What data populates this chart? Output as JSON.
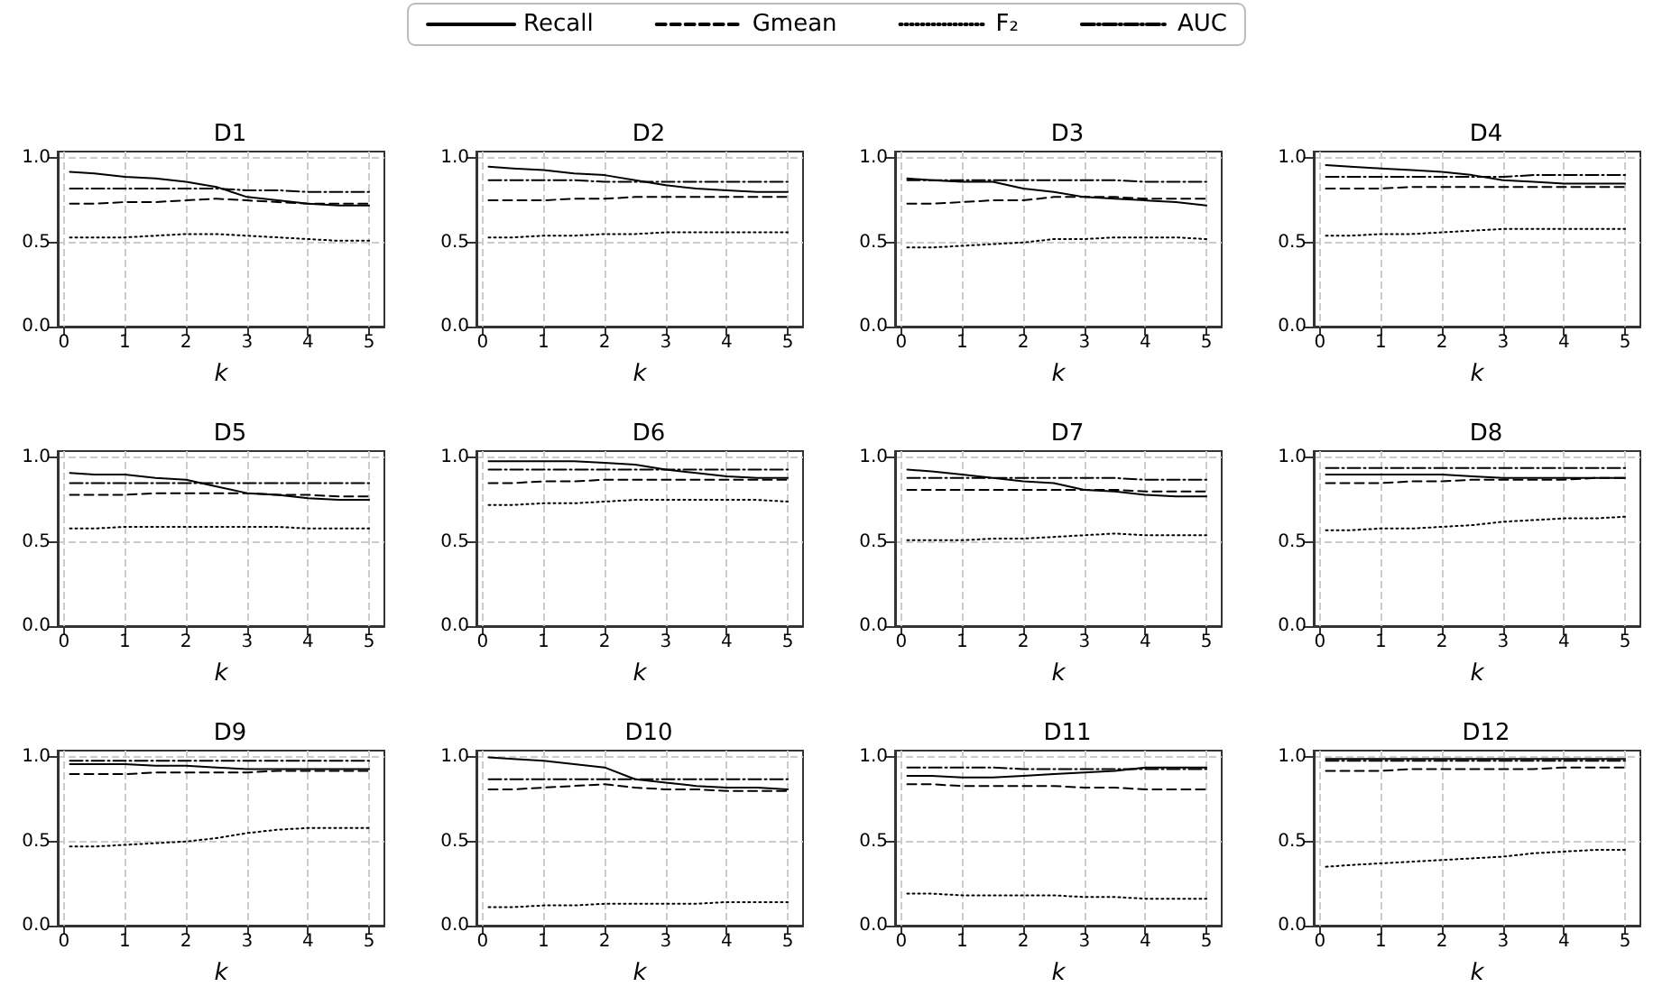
{
  "chart_data": [
    {
      "type": "line",
      "title": "D1",
      "xlabel": "k",
      "legend": "top",
      "grid": true,
      "marker": "none",
      "x": [
        0.1,
        0.5,
        1,
        1.5,
        2,
        2.5,
        3,
        3.5,
        4,
        4.5,
        5
      ],
      "xlim": [
        -0.1,
        5.25
      ],
      "xticks": [
        0,
        1,
        2,
        3,
        4,
        5
      ],
      "ylim": [
        0,
        1.04
      ],
      "yticks": [
        {
          "value": 0,
          "label": "0.0"
        },
        {
          "value": 0.5,
          "label": "0.5"
        },
        {
          "value": 1,
          "label": "1.0"
        }
      ],
      "series": [
        {
          "name": "Recall",
          "color": "#000000",
          "line_style": "solid",
          "values": [
            0.92,
            0.91,
            0.89,
            0.88,
            0.86,
            0.83,
            0.77,
            0.75,
            0.73,
            0.72,
            0.72
          ]
        },
        {
          "name": "Gmean",
          "color": "#000000",
          "line_style": "dashed",
          "values": [
            0.73,
            0.73,
            0.74,
            0.74,
            0.75,
            0.76,
            0.75,
            0.74,
            0.73,
            0.73,
            0.73
          ]
        },
        {
          "name": "F₂",
          "color": "#000000",
          "line_style": "dotted",
          "values": [
            0.53,
            0.53,
            0.53,
            0.54,
            0.55,
            0.55,
            0.54,
            0.53,
            0.52,
            0.51,
            0.51
          ]
        },
        {
          "name": "AUC",
          "color": "#000000",
          "line_style": "dashdot",
          "values": [
            0.82,
            0.82,
            0.82,
            0.82,
            0.82,
            0.82,
            0.81,
            0.81,
            0.8,
            0.8,
            0.8
          ]
        }
      ]
    },
    {
      "type": "line",
      "title": "D2",
      "xlabel": "k",
      "grid": true,
      "marker": "none",
      "x": [
        0.1,
        0.5,
        1,
        1.5,
        2,
        2.5,
        3,
        3.5,
        4,
        4.5,
        5
      ],
      "xlim": [
        -0.1,
        5.25
      ],
      "xticks": [
        0,
        1,
        2,
        3,
        4,
        5
      ],
      "ylim": [
        0,
        1.04
      ],
      "yticks": [
        {
          "value": 0,
          "label": "0.0"
        },
        {
          "value": 0.5,
          "label": "0.5"
        },
        {
          "value": 1,
          "label": "1.0"
        }
      ],
      "series": [
        {
          "color": "#000000",
          "line_style": "solid",
          "values": [
            0.95,
            0.94,
            0.93,
            0.91,
            0.9,
            0.87,
            0.84,
            0.82,
            0.81,
            0.8,
            0.8
          ]
        },
        {
          "color": "#000000",
          "line_style": "dashed",
          "values": [
            0.75,
            0.75,
            0.75,
            0.76,
            0.76,
            0.77,
            0.77,
            0.77,
            0.77,
            0.77,
            0.77
          ]
        },
        {
          "color": "#000000",
          "line_style": "dotted",
          "values": [
            0.53,
            0.53,
            0.54,
            0.54,
            0.55,
            0.55,
            0.56,
            0.56,
            0.56,
            0.56,
            0.56
          ]
        },
        {
          "color": "#000000",
          "line_style": "dashdot",
          "values": [
            0.87,
            0.87,
            0.87,
            0.87,
            0.86,
            0.86,
            0.86,
            0.86,
            0.86,
            0.86,
            0.86
          ]
        }
      ]
    },
    {
      "type": "line",
      "title": "D3",
      "xlabel": "k",
      "grid": true,
      "marker": "none",
      "x": [
        0.1,
        0.5,
        1,
        1.5,
        2,
        2.5,
        3,
        3.5,
        4,
        4.5,
        5
      ],
      "xlim": [
        -0.1,
        5.25
      ],
      "xticks": [
        0,
        1,
        2,
        3,
        4,
        5
      ],
      "ylim": [
        0,
        1.04
      ],
      "yticks": [
        {
          "value": 0,
          "label": "0.0"
        },
        {
          "value": 0.5,
          "label": "0.5"
        },
        {
          "value": 1,
          "label": "1.0"
        }
      ],
      "series": [
        {
          "color": "#000000",
          "line_style": "solid",
          "values": [
            0.88,
            0.87,
            0.86,
            0.86,
            0.82,
            0.8,
            0.77,
            0.76,
            0.75,
            0.74,
            0.72
          ]
        },
        {
          "color": "#000000",
          "line_style": "dashed",
          "values": [
            0.73,
            0.73,
            0.74,
            0.75,
            0.75,
            0.77,
            0.77,
            0.77,
            0.76,
            0.76,
            0.76
          ]
        },
        {
          "color": "#000000",
          "line_style": "dotted",
          "values": [
            0.47,
            0.47,
            0.48,
            0.49,
            0.5,
            0.52,
            0.52,
            0.53,
            0.53,
            0.53,
            0.52
          ]
        },
        {
          "color": "#000000",
          "line_style": "dashdot",
          "values": [
            0.87,
            0.87,
            0.87,
            0.87,
            0.87,
            0.87,
            0.87,
            0.87,
            0.86,
            0.86,
            0.86
          ]
        }
      ]
    },
    {
      "type": "line",
      "title": "D4",
      "xlabel": "k",
      "grid": true,
      "marker": "none",
      "x": [
        0.1,
        0.5,
        1,
        1.5,
        2,
        2.5,
        3,
        3.5,
        4,
        4.5,
        5
      ],
      "xlim": [
        -0.1,
        5.25
      ],
      "xticks": [
        0,
        1,
        2,
        3,
        4,
        5
      ],
      "ylim": [
        0,
        1.04
      ],
      "yticks": [
        {
          "value": 0,
          "label": "0.0"
        },
        {
          "value": 0.5,
          "label": "0.5"
        },
        {
          "value": 1,
          "label": "1.0"
        }
      ],
      "series": [
        {
          "color": "#000000",
          "line_style": "solid",
          "values": [
            0.96,
            0.95,
            0.94,
            0.93,
            0.92,
            0.9,
            0.87,
            0.86,
            0.85,
            0.85,
            0.85
          ]
        },
        {
          "color": "#000000",
          "line_style": "dashed",
          "values": [
            0.82,
            0.82,
            0.82,
            0.83,
            0.83,
            0.83,
            0.83,
            0.83,
            0.83,
            0.83,
            0.83
          ]
        },
        {
          "color": "#000000",
          "line_style": "dotted",
          "values": [
            0.54,
            0.54,
            0.55,
            0.55,
            0.56,
            0.57,
            0.58,
            0.58,
            0.58,
            0.58,
            0.58
          ]
        },
        {
          "color": "#000000",
          "line_style": "dashdot",
          "values": [
            0.89,
            0.89,
            0.89,
            0.89,
            0.89,
            0.89,
            0.89,
            0.9,
            0.9,
            0.9,
            0.9
          ]
        }
      ]
    },
    {
      "type": "line",
      "title": "D5",
      "xlabel": "k",
      "grid": true,
      "marker": "none",
      "x": [
        0.1,
        0.5,
        1,
        1.5,
        2,
        2.5,
        3,
        3.5,
        4,
        4.5,
        5
      ],
      "xlim": [
        -0.1,
        5.25
      ],
      "xticks": [
        0,
        1,
        2,
        3,
        4,
        5
      ],
      "ylim": [
        0,
        1.04
      ],
      "yticks": [
        {
          "value": 0,
          "label": "0.0"
        },
        {
          "value": 0.5,
          "label": "0.5"
        },
        {
          "value": 1,
          "label": "1.0"
        }
      ],
      "series": [
        {
          "color": "#000000",
          "line_style": "solid",
          "values": [
            0.91,
            0.9,
            0.9,
            0.88,
            0.87,
            0.83,
            0.79,
            0.78,
            0.76,
            0.75,
            0.75
          ]
        },
        {
          "color": "#000000",
          "line_style": "dashed",
          "values": [
            0.78,
            0.78,
            0.78,
            0.79,
            0.79,
            0.79,
            0.79,
            0.78,
            0.78,
            0.77,
            0.77
          ]
        },
        {
          "color": "#000000",
          "line_style": "dotted",
          "values": [
            0.58,
            0.58,
            0.59,
            0.59,
            0.59,
            0.59,
            0.59,
            0.59,
            0.58,
            0.58,
            0.58
          ]
        },
        {
          "color": "#000000",
          "line_style": "dashdot",
          "values": [
            0.85,
            0.85,
            0.85,
            0.85,
            0.85,
            0.85,
            0.85,
            0.85,
            0.85,
            0.85,
            0.85
          ]
        }
      ]
    },
    {
      "type": "line",
      "title": "D6",
      "xlabel": "k",
      "grid": true,
      "marker": "none",
      "x": [
        0.1,
        0.5,
        1,
        1.5,
        2,
        2.5,
        3,
        3.5,
        4,
        4.5,
        5
      ],
      "xlim": [
        -0.1,
        5.25
      ],
      "xticks": [
        0,
        1,
        2,
        3,
        4,
        5
      ],
      "ylim": [
        0,
        1.04
      ],
      "yticks": [
        {
          "value": 0,
          "label": "0.0"
        },
        {
          "value": 0.5,
          "label": "0.5"
        },
        {
          "value": 1,
          "label": "1.0"
        }
      ],
      "series": [
        {
          "color": "#000000",
          "line_style": "solid",
          "values": [
            0.98,
            0.98,
            0.98,
            0.98,
            0.97,
            0.96,
            0.93,
            0.91,
            0.89,
            0.88,
            0.88
          ]
        },
        {
          "color": "#000000",
          "line_style": "dashed",
          "values": [
            0.85,
            0.85,
            0.86,
            0.86,
            0.87,
            0.87,
            0.87,
            0.87,
            0.87,
            0.87,
            0.87
          ]
        },
        {
          "color": "#000000",
          "line_style": "dotted",
          "values": [
            0.72,
            0.72,
            0.73,
            0.73,
            0.74,
            0.75,
            0.75,
            0.75,
            0.75,
            0.75,
            0.74
          ]
        },
        {
          "color": "#000000",
          "line_style": "dashdot",
          "values": [
            0.93,
            0.93,
            0.93,
            0.93,
            0.93,
            0.93,
            0.93,
            0.93,
            0.93,
            0.93,
            0.93
          ]
        }
      ]
    },
    {
      "type": "line",
      "title": "D7",
      "xlabel": "k",
      "grid": true,
      "marker": "none",
      "x": [
        0.1,
        0.5,
        1,
        1.5,
        2,
        2.5,
        3,
        3.5,
        4,
        4.5,
        5
      ],
      "xlim": [
        -0.1,
        5.25
      ],
      "xticks": [
        0,
        1,
        2,
        3,
        4,
        5
      ],
      "ylim": [
        0,
        1.04
      ],
      "yticks": [
        {
          "value": 0,
          "label": "0.0"
        },
        {
          "value": 0.5,
          "label": "0.5"
        },
        {
          "value": 1,
          "label": "1.0"
        }
      ],
      "series": [
        {
          "color": "#000000",
          "line_style": "solid",
          "values": [
            0.93,
            0.92,
            0.9,
            0.88,
            0.86,
            0.85,
            0.81,
            0.8,
            0.78,
            0.77,
            0.77
          ]
        },
        {
          "color": "#000000",
          "line_style": "dashed",
          "values": [
            0.81,
            0.81,
            0.81,
            0.81,
            0.81,
            0.81,
            0.81,
            0.81,
            0.8,
            0.8,
            0.8
          ]
        },
        {
          "color": "#000000",
          "line_style": "dotted",
          "values": [
            0.51,
            0.51,
            0.51,
            0.52,
            0.52,
            0.53,
            0.54,
            0.55,
            0.54,
            0.54,
            0.54
          ]
        },
        {
          "color": "#000000",
          "line_style": "dashdot",
          "values": [
            0.88,
            0.88,
            0.88,
            0.88,
            0.88,
            0.88,
            0.88,
            0.88,
            0.87,
            0.87,
            0.87
          ]
        }
      ]
    },
    {
      "type": "line",
      "title": "D8",
      "xlabel": "k",
      "grid": true,
      "marker": "none",
      "x": [
        0.1,
        0.5,
        1,
        1.5,
        2,
        2.5,
        3,
        3.5,
        4,
        4.5,
        5
      ],
      "xlim": [
        -0.1,
        5.25
      ],
      "xticks": [
        0,
        1,
        2,
        3,
        4,
        5
      ],
      "ylim": [
        0,
        1.04
      ],
      "yticks": [
        {
          "value": 0,
          "label": "0.0"
        },
        {
          "value": 0.5,
          "label": "0.5"
        },
        {
          "value": 1,
          "label": "1.0"
        }
      ],
      "series": [
        {
          "color": "#000000",
          "line_style": "solid",
          "values": [
            0.9,
            0.9,
            0.9,
            0.9,
            0.9,
            0.89,
            0.88,
            0.88,
            0.88,
            0.88,
            0.88
          ]
        },
        {
          "color": "#000000",
          "line_style": "dashed",
          "values": [
            0.85,
            0.85,
            0.85,
            0.86,
            0.86,
            0.87,
            0.87,
            0.87,
            0.87,
            0.88,
            0.88
          ]
        },
        {
          "color": "#000000",
          "line_style": "dotted",
          "values": [
            0.57,
            0.57,
            0.58,
            0.58,
            0.59,
            0.6,
            0.62,
            0.63,
            0.64,
            0.64,
            0.65
          ]
        },
        {
          "color": "#000000",
          "line_style": "dashdot",
          "values": [
            0.94,
            0.94,
            0.94,
            0.94,
            0.94,
            0.94,
            0.94,
            0.94,
            0.94,
            0.94,
            0.94
          ]
        }
      ]
    },
    {
      "type": "line",
      "title": "D9",
      "xlabel": "k",
      "grid": true,
      "marker": "none",
      "x": [
        0.1,
        0.5,
        1,
        1.5,
        2,
        2.5,
        3,
        3.5,
        4,
        4.5,
        5
      ],
      "xlim": [
        -0.1,
        5.25
      ],
      "xticks": [
        0,
        1,
        2,
        3,
        4,
        5
      ],
      "ylim": [
        0,
        1.04
      ],
      "yticks": [
        {
          "value": 0,
          "label": "0.0"
        },
        {
          "value": 0.5,
          "label": "0.5"
        },
        {
          "value": 1,
          "label": "1.0"
        }
      ],
      "series": [
        {
          "color": "#000000",
          "line_style": "solid",
          "values": [
            0.96,
            0.96,
            0.96,
            0.95,
            0.95,
            0.94,
            0.93,
            0.93,
            0.93,
            0.93,
            0.93
          ]
        },
        {
          "color": "#000000",
          "line_style": "dashed",
          "values": [
            0.9,
            0.9,
            0.9,
            0.91,
            0.91,
            0.91,
            0.91,
            0.92,
            0.92,
            0.92,
            0.92
          ]
        },
        {
          "color": "#000000",
          "line_style": "dotted",
          "values": [
            0.47,
            0.47,
            0.48,
            0.49,
            0.5,
            0.52,
            0.55,
            0.57,
            0.58,
            0.58,
            0.58
          ]
        },
        {
          "color": "#000000",
          "line_style": "dashdot",
          "values": [
            0.98,
            0.98,
            0.98,
            0.98,
            0.98,
            0.98,
            0.98,
            0.98,
            0.98,
            0.98,
            0.98
          ]
        }
      ]
    },
    {
      "type": "line",
      "title": "D10",
      "xlabel": "k",
      "grid": true,
      "marker": "none",
      "x": [
        0.1,
        0.5,
        1,
        1.5,
        2,
        2.5,
        3,
        3.5,
        4,
        4.5,
        5
      ],
      "xlim": [
        -0.1,
        5.25
      ],
      "xticks": [
        0,
        1,
        2,
        3,
        4,
        5
      ],
      "ylim": [
        0,
        1.04
      ],
      "yticks": [
        {
          "value": 0,
          "label": "0.0"
        },
        {
          "value": 0.5,
          "label": "0.5"
        },
        {
          "value": 1,
          "label": "1.0"
        }
      ],
      "series": [
        {
          "color": "#000000",
          "line_style": "solid",
          "values": [
            1.0,
            0.99,
            0.98,
            0.96,
            0.94,
            0.87,
            0.85,
            0.83,
            0.82,
            0.82,
            0.81
          ]
        },
        {
          "color": "#000000",
          "line_style": "dashed",
          "values": [
            0.81,
            0.81,
            0.82,
            0.83,
            0.84,
            0.82,
            0.81,
            0.81,
            0.8,
            0.8,
            0.8
          ]
        },
        {
          "color": "#000000",
          "line_style": "dotted",
          "values": [
            0.11,
            0.11,
            0.12,
            0.12,
            0.13,
            0.13,
            0.13,
            0.13,
            0.14,
            0.14,
            0.14
          ]
        },
        {
          "color": "#000000",
          "line_style": "dashdot",
          "values": [
            0.87,
            0.87,
            0.87,
            0.87,
            0.87,
            0.87,
            0.87,
            0.87,
            0.87,
            0.87,
            0.87
          ]
        }
      ]
    },
    {
      "type": "line",
      "title": "D11",
      "xlabel": "k",
      "grid": true,
      "marker": "none",
      "x": [
        0.1,
        0.5,
        1,
        1.5,
        2,
        2.5,
        3,
        3.5,
        4,
        4.5,
        5
      ],
      "xlim": [
        -0.1,
        5.25
      ],
      "xticks": [
        0,
        1,
        2,
        3,
        4,
        5
      ],
      "ylim": [
        0,
        1.04
      ],
      "yticks": [
        {
          "value": 0,
          "label": "0.0"
        },
        {
          "value": 0.5,
          "label": "0.5"
        },
        {
          "value": 1,
          "label": "1.0"
        }
      ],
      "series": [
        {
          "color": "#000000",
          "line_style": "solid",
          "values": [
            0.89,
            0.89,
            0.88,
            0.88,
            0.89,
            0.9,
            0.91,
            0.92,
            0.94,
            0.94,
            0.94
          ]
        },
        {
          "color": "#000000",
          "line_style": "dashed",
          "values": [
            0.84,
            0.84,
            0.83,
            0.83,
            0.83,
            0.83,
            0.82,
            0.82,
            0.81,
            0.81,
            0.81
          ]
        },
        {
          "color": "#000000",
          "line_style": "dotted",
          "values": [
            0.19,
            0.19,
            0.18,
            0.18,
            0.18,
            0.18,
            0.17,
            0.17,
            0.16,
            0.16,
            0.16
          ]
        },
        {
          "color": "#000000",
          "line_style": "dashdot",
          "values": [
            0.94,
            0.94,
            0.94,
            0.94,
            0.93,
            0.93,
            0.93,
            0.93,
            0.93,
            0.93,
            0.93
          ]
        }
      ]
    },
    {
      "type": "line",
      "title": "D12",
      "xlabel": "k",
      "grid": true,
      "marker": "none",
      "x": [
        0.1,
        0.5,
        1,
        1.5,
        2,
        2.5,
        3,
        3.5,
        4,
        4.5,
        5
      ],
      "xlim": [
        -0.1,
        5.25
      ],
      "xticks": [
        0,
        1,
        2,
        3,
        4,
        5
      ],
      "ylim": [
        0,
        1.04
      ],
      "yticks": [
        {
          "value": 0,
          "label": "0.0"
        },
        {
          "value": 0.5,
          "label": "0.5"
        },
        {
          "value": 1,
          "label": "1.0"
        }
      ],
      "series": [
        {
          "color": "#000000",
          "line_style": "solid",
          "values": [
            0.99,
            0.99,
            0.99,
            0.99,
            0.99,
            0.99,
            0.99,
            0.99,
            0.99,
            0.99,
            0.99
          ]
        },
        {
          "color": "#000000",
          "line_style": "dashed",
          "values": [
            0.92,
            0.92,
            0.92,
            0.93,
            0.93,
            0.93,
            0.93,
            0.93,
            0.94,
            0.94,
            0.94
          ]
        },
        {
          "color": "#000000",
          "line_style": "dotted",
          "values": [
            0.35,
            0.36,
            0.37,
            0.38,
            0.39,
            0.4,
            0.41,
            0.43,
            0.44,
            0.45,
            0.45
          ]
        },
        {
          "color": "#000000",
          "line_style": "dashdot",
          "values": [
            0.98,
            0.98,
            0.98,
            0.98,
            0.98,
            0.98,
            0.98,
            0.98,
            0.98,
            0.98,
            0.98
          ]
        }
      ]
    }
  ]
}
